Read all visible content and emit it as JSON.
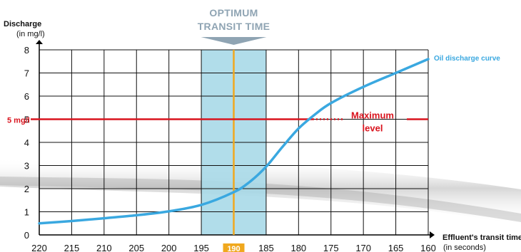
{
  "chart_data": {
    "type": "line",
    "header": [
      "OPTIMUM",
      "TRANSIT TIME"
    ],
    "ylabel": [
      "Discharge",
      "(in mg/l)"
    ],
    "xlabel": [
      "Effluent's transit time",
      "(in seconds)"
    ],
    "x_ticks": [
      220,
      215,
      210,
      205,
      200,
      195,
      190,
      185,
      180,
      175,
      170,
      165,
      160
    ],
    "y_ticks": [
      0,
      1,
      2,
      3,
      4,
      5,
      6,
      7,
      8
    ],
    "xlim": [
      220,
      160
    ],
    "ylim": [
      0,
      8
    ],
    "grid": true,
    "series": [
      {
        "name": "Oil discharge curve",
        "color": "#3aa8e0",
        "x": [
          220,
          215,
          210,
          205,
          200,
          195,
          190,
          187.5,
          185,
          182.5,
          180,
          177.5,
          175,
          170,
          165,
          160
        ],
        "y": [
          0.5,
          0.6,
          0.72,
          0.85,
          1.02,
          1.3,
          1.85,
          2.3,
          2.95,
          3.8,
          4.6,
          5.2,
          5.7,
          6.4,
          7.0,
          7.6
        ]
      }
    ],
    "max_level": {
      "value": 5,
      "label_left": "5 mg/l",
      "label": [
        "Maximum",
        "level"
      ],
      "color": "#d9141e"
    },
    "optimum": {
      "band": [
        195,
        185
      ],
      "value": 190,
      "band_color": "#a9d9e8",
      "line_color": "#f0a81e"
    }
  }
}
